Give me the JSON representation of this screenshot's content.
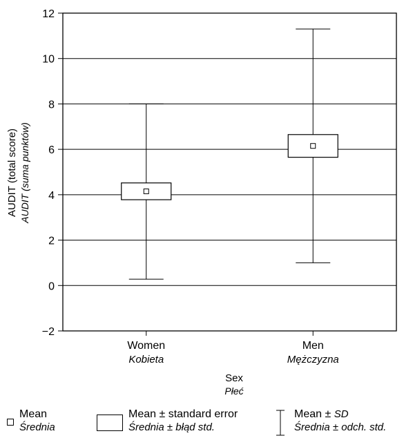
{
  "chart_data": {
    "type": "box",
    "categories": [
      {
        "label": "Women",
        "label_pl": "Kobieta"
      },
      {
        "label": "Men",
        "label_pl": "Mężczyzna"
      }
    ],
    "series": [
      {
        "category": "Women",
        "mean": 4.15,
        "se_low": 3.78,
        "se_high": 4.52,
        "sd_low": 0.28,
        "sd_high": 8.0
      },
      {
        "category": "Men",
        "mean": 6.15,
        "se_low": 5.65,
        "se_high": 6.65,
        "sd_low": 1.0,
        "sd_high": 11.3
      }
    ],
    "xlabel": "Sex",
    "xlabel_pl": "Płeć",
    "ylabel": "AUDIT (total score)",
    "ylabel_pl": "AUDIT (suma punktów)",
    "ylim": [
      -2,
      12
    ],
    "yticks": [
      "−2",
      "0",
      "2",
      "4",
      "6",
      "8",
      "10",
      "12"
    ],
    "ytick_values": [
      -2,
      0,
      2,
      4,
      6,
      8,
      10,
      12
    ],
    "grid": "horizontal",
    "legend_placement": "bottom",
    "legend": [
      {
        "symbol": "mean",
        "label": "Mean",
        "label_pl": "Średnia"
      },
      {
        "symbol": "box",
        "label": "Mean ± standard error",
        "label_pl": "Średnia ± błąd std."
      },
      {
        "symbol": "whisker",
        "label": "Mean ± ",
        "label_it": "SD",
        "label_pl": "Średnia ± odch. std."
      }
    ]
  }
}
